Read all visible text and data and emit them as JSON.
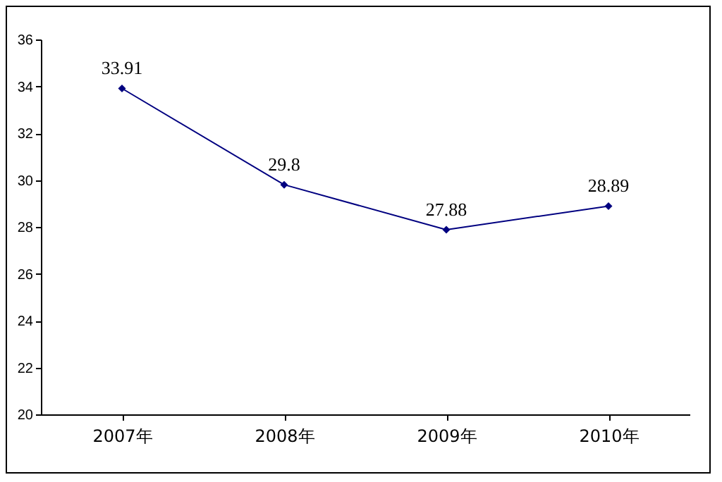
{
  "chart_data": {
    "type": "line",
    "categories": [
      "2007年",
      "2008年",
      "2009年",
      "2010年"
    ],
    "series": [
      {
        "color": "#000080",
        "values": [
          33.91,
          29.8,
          27.88,
          28.89
        ]
      }
    ],
    "ylim": [
      20,
      36
    ],
    "yticks": [
      20,
      22,
      24,
      26,
      28,
      30,
      32,
      34,
      36
    ],
    "grid": false,
    "legend": false,
    "marker": "diamond",
    "line_style": "solid",
    "data_labels": true
  }
}
